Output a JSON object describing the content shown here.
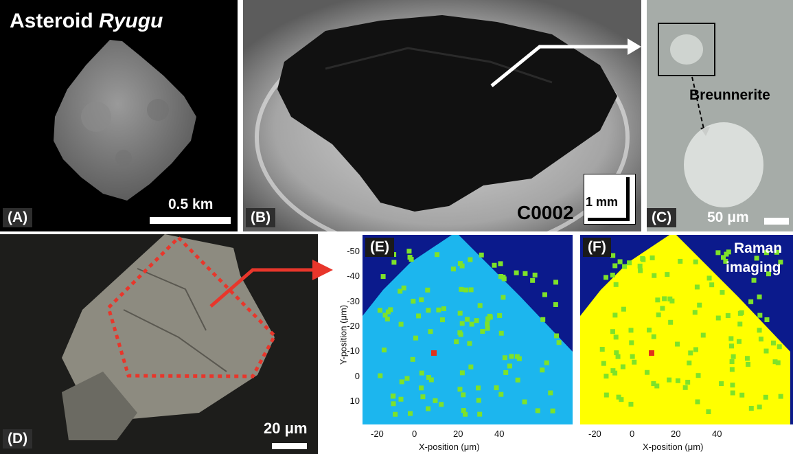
{
  "panels": {
    "a": {
      "label": "(A)",
      "title_main": "Asteroid ",
      "title_italic": "Ryugu",
      "scale": "0.5 km"
    },
    "b": {
      "label": "(B)",
      "sample_id": "C0002",
      "scale": "1 mm"
    },
    "c": {
      "label": "(C)",
      "mineral": "Breunnerite",
      "scale": "50 μm"
    },
    "d": {
      "label": "(D)",
      "scale": "20 μm"
    },
    "e": {
      "label": "(E)"
    },
    "f": {
      "label": "(F)",
      "annotation_line1": "Raman",
      "annotation_line2": "imaging"
    }
  },
  "maps": {
    "x_axis_label": "X-position (μm)",
    "y_axis_label": "Y-position (μm)",
    "x_ticks": [
      "-20",
      "0",
      "20",
      "40"
    ],
    "y_ticks": [
      "-50",
      "-40",
      "-30",
      "-20",
      "-10",
      "0",
      "10"
    ],
    "colors": {
      "background": "#0b1a8c",
      "blue_phase": "#1cb6ee",
      "green_phase": "#7ee22a",
      "yellow_phase": "#ffff00",
      "red_phase": "#e0321b"
    }
  }
}
